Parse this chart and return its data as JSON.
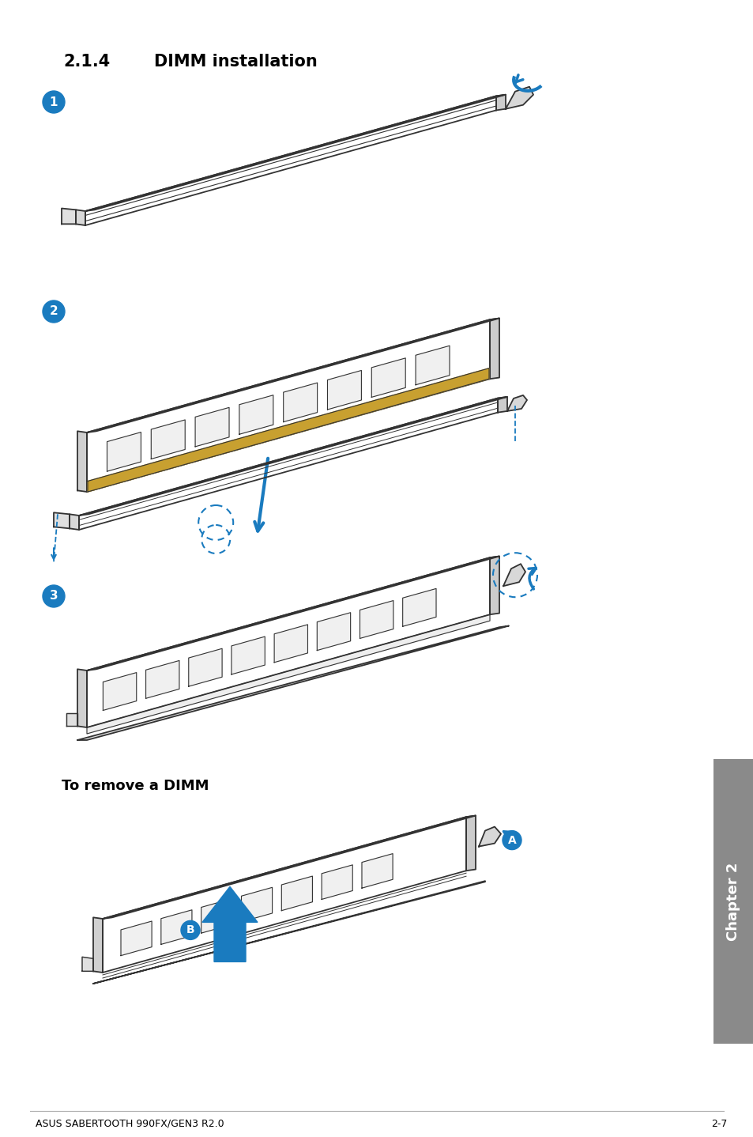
{
  "title_number": "2.1.4",
  "title_text": "DIMM installation",
  "footer_left": "ASUS SABERTOOTH 990FX/GEN3 R2.0",
  "footer_right": "2-7",
  "background_color": "#ffffff",
  "text_color": "#000000",
  "blue_color": "#1a7bbf",
  "line_color": "#333333",
  "chapter_text": "Chapter 2",
  "to_remove_text": "To remove a DIMM",
  "page_width": 9.54,
  "page_height": 14.38,
  "dpi": 100,
  "sidebar_color": "#8a8a8a"
}
